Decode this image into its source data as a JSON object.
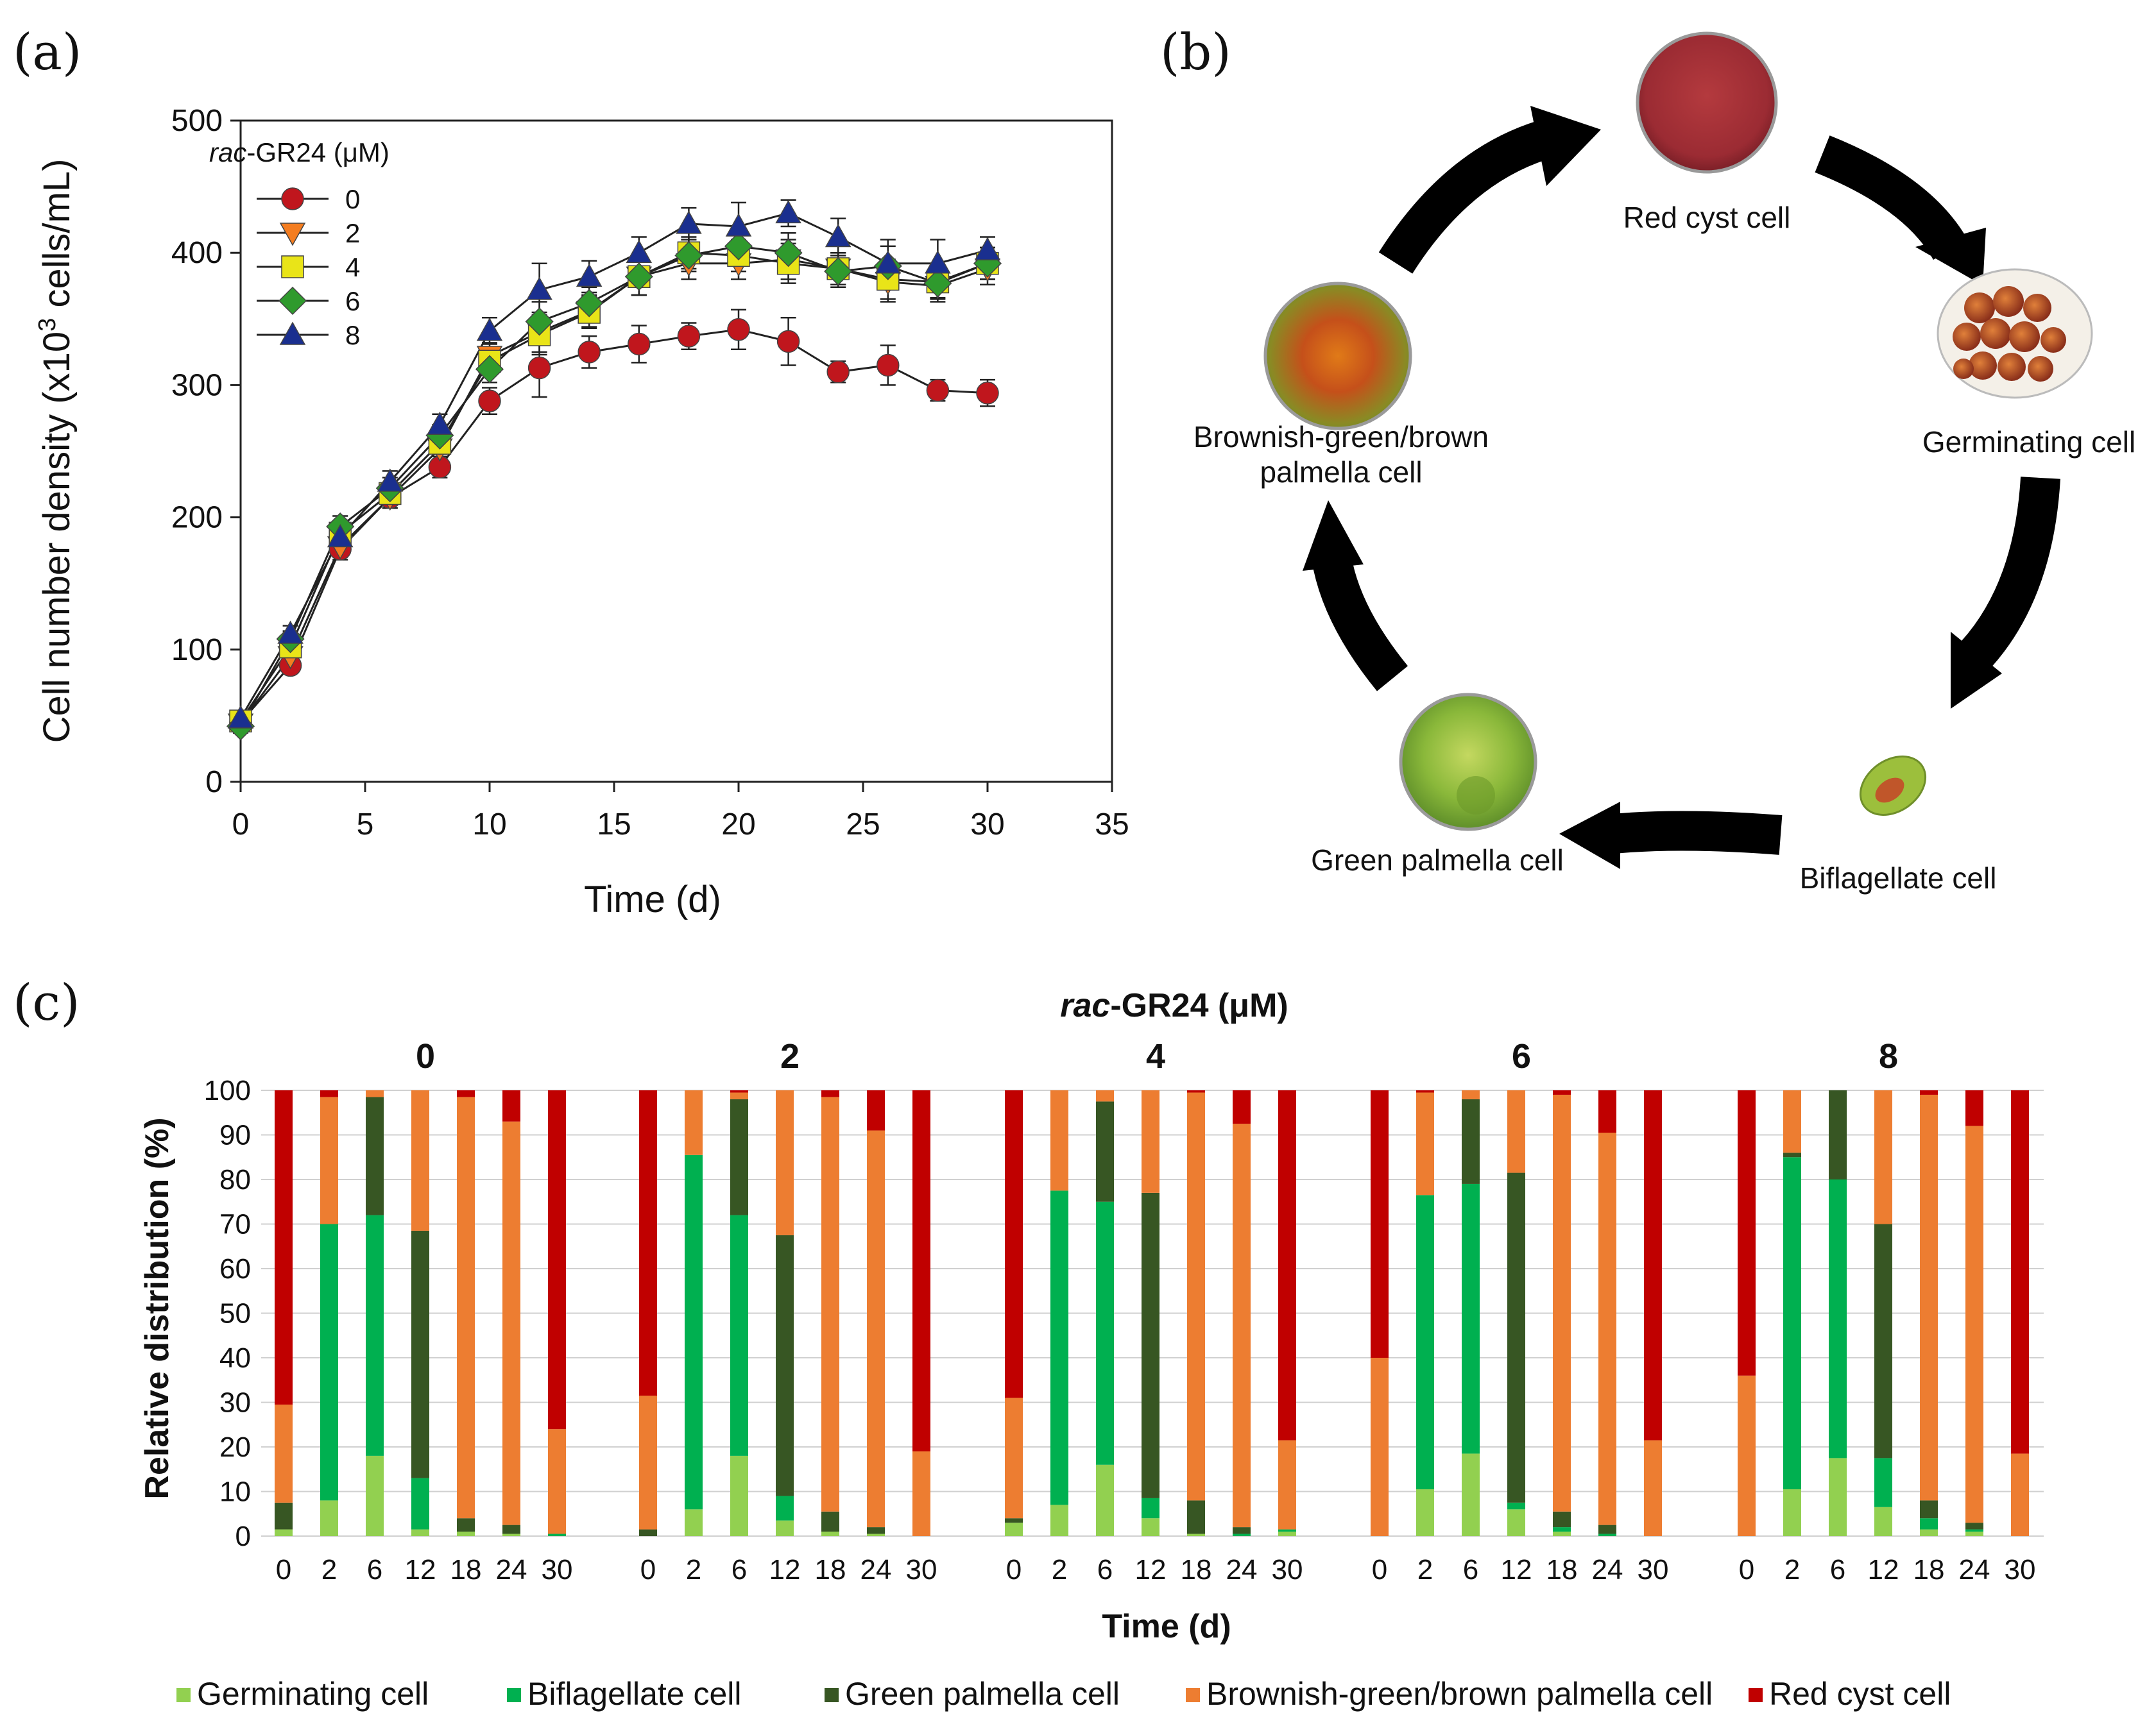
{
  "panels": {
    "a": "(a)",
    "b": "(b)",
    "c": "(c)"
  },
  "chart_data": [
    {
      "type": "line",
      "panel": "a",
      "title": "",
      "xlabel": "Time (d)",
      "ylabel_main": "Cell number density (x10",
      "ylabel_sup": "3",
      "ylabel_tail": " cells/mL)",
      "legend_title_italic": "rac",
      "legend_title_rest": "-GR24 (μM)",
      "xlim": [
        0,
        35
      ],
      "ylim": [
        0,
        500
      ],
      "xticks": [
        0,
        5,
        10,
        15,
        20,
        25,
        30,
        35
      ],
      "yticks": [
        0,
        100,
        200,
        300,
        400,
        500
      ],
      "x": [
        0,
        2,
        4,
        6,
        8,
        10,
        12,
        14,
        16,
        18,
        20,
        22,
        24,
        26,
        28,
        30
      ],
      "series": [
        {
          "name": "0",
          "marker": "circle",
          "color": "#c0161d",
          "values": [
            45,
            88,
            176,
            215,
            238,
            288,
            313,
            325,
            331,
            337,
            342,
            333,
            310,
            315,
            296,
            294
          ],
          "errors": [
            5,
            6,
            8,
            8,
            8,
            10,
            22,
            12,
            14,
            10,
            15,
            18,
            8,
            15,
            8,
            10
          ]
        },
        {
          "name": "2",
          "marker": "triangle-down",
          "color": "#f47d20",
          "values": [
            44,
            95,
            178,
            215,
            252,
            322,
            340,
            356,
            382,
            392,
            392,
            395,
            388,
            378,
            375,
            388
          ],
          "errors": [
            5,
            6,
            8,
            8,
            8,
            10,
            15,
            12,
            14,
            12,
            12,
            15,
            12,
            15,
            12,
            12
          ]
        },
        {
          "name": "4",
          "marker": "square",
          "color": "#e9e418",
          "values": [
            46,
            102,
            188,
            218,
            256,
            318,
            338,
            355,
            382,
            400,
            398,
            392,
            388,
            380,
            378,
            392
          ],
          "errors": [
            5,
            6,
            8,
            8,
            8,
            10,
            15,
            12,
            14,
            12,
            12,
            15,
            12,
            15,
            12,
            12
          ]
        },
        {
          "name": "6",
          "marker": "diamond",
          "color": "#2f9a2d",
          "values": [
            42,
            108,
            193,
            222,
            262,
            312,
            348,
            362,
            382,
            398,
            405,
            400,
            386,
            390,
            377,
            392
          ],
          "errors": [
            5,
            6,
            8,
            8,
            8,
            10,
            15,
            12,
            14,
            12,
            12,
            15,
            12,
            15,
            12,
            12
          ]
        },
        {
          "name": "8",
          "marker": "triangle-up",
          "color": "#1a2f8f",
          "values": [
            48,
            112,
            185,
            227,
            270,
            341,
            372,
            382,
            400,
            422,
            420,
            430,
            412,
            392,
            392,
            402
          ],
          "errors": [
            5,
            6,
            8,
            8,
            8,
            10,
            20,
            12,
            12,
            12,
            18,
            10,
            14,
            18,
            18,
            10
          ]
        }
      ]
    },
    {
      "type": "diagram",
      "panel": "b",
      "stages": [
        "Red cyst cell",
        "Germinating cell",
        "Biflagellate cell",
        "Green palmella cell",
        "Brownish-green/brown palmella cell"
      ],
      "stage_lines": {
        "brownish_line1": "Brownish-green/brown",
        "brownish_line2": "palmella cell"
      }
    },
    {
      "type": "bar",
      "panel": "c",
      "stacked": true,
      "title_italic": "rac",
      "title_rest": "-GR24 (μM)",
      "xlabel": "Time (d)",
      "ylabel": "Relative distribution (%)",
      "ylim": [
        0,
        100
      ],
      "yticks": [
        0,
        10,
        20,
        30,
        40,
        50,
        60,
        70,
        80,
        90,
        100
      ],
      "time_points": [
        "0",
        "2",
        "6",
        "12",
        "18",
        "24",
        "30"
      ],
      "stage_order": [
        "Germinating cell",
        "Biflagellate cell",
        "Green palmella cell",
        "Brownish-green/brown palmella cell",
        "Red cyst cell"
      ],
      "colors": [
        "#92d050",
        "#00b050",
        "#375623",
        "#ed7d31",
        "#c00000"
      ],
      "groups": [
        {
          "name": "0",
          "bars": [
            [
              1.5,
              0,
              6,
              22,
              70.5
            ],
            [
              8,
              62,
              0,
              28.5,
              1.5
            ],
            [
              18,
              54,
              26.5,
              1.5,
              0
            ],
            [
              1.5,
              11.5,
              55.5,
              31.5,
              0
            ],
            [
              1,
              0,
              3,
              94.5,
              1.5
            ],
            [
              0.5,
              0,
              2,
              90.5,
              7
            ],
            [
              0,
              0.5,
              0,
              23.5,
              76
            ]
          ]
        },
        {
          "name": "2",
          "bars": [
            [
              0,
              0,
              1.5,
              30,
              68.5
            ],
            [
              6,
              79.5,
              0,
              14.5,
              0
            ],
            [
              18,
              54,
              26,
              1.5,
              0.5
            ],
            [
              3.5,
              5.5,
              58.5,
              32.5,
              0
            ],
            [
              1,
              0,
              4.5,
              93,
              1.5
            ],
            [
              0.5,
              0,
              1.5,
              89,
              9
            ],
            [
              0,
              0,
              0,
              19,
              81
            ]
          ]
        },
        {
          "name": "4",
          "bars": [
            [
              3,
              0,
              1,
              27,
              69
            ],
            [
              7,
              70.5,
              0,
              22.5,
              0
            ],
            [
              16,
              59,
              22.5,
              2.5,
              0
            ],
            [
              4,
              4.5,
              68.5,
              23,
              0
            ],
            [
              0.5,
              0,
              7.5,
              91.5,
              0.5
            ],
            [
              0,
              0.5,
              1.5,
              90.5,
              7.5
            ],
            [
              1,
              0.5,
              0,
              20,
              78.5
            ]
          ]
        },
        {
          "name": "6",
          "bars": [
            [
              0,
              0,
              0,
              40,
              60
            ],
            [
              10.5,
              66,
              0,
              23,
              0.5
            ],
            [
              18.5,
              60.5,
              19,
              2,
              0
            ],
            [
              6,
              1.5,
              74,
              18.5,
              0
            ],
            [
              1,
              1,
              3.5,
              93.5,
              1
            ],
            [
              0,
              0.5,
              2,
              88,
              9.5
            ],
            [
              0,
              0,
              0,
              21.5,
              78.5
            ]
          ]
        },
        {
          "name": "8",
          "bars": [
            [
              0,
              0,
              0,
              36,
              64
            ],
            [
              10.5,
              74.5,
              1,
              14,
              0
            ],
            [
              17.5,
              62.5,
              20,
              0,
              0
            ],
            [
              6.5,
              11,
              52.5,
              30,
              0
            ],
            [
              1.5,
              2.5,
              4,
              91,
              1
            ],
            [
              1,
              0.5,
              1.5,
              89,
              8
            ],
            [
              0,
              0,
              0,
              18.5,
              81.5
            ]
          ]
        }
      ]
    }
  ],
  "legend_c": [
    {
      "label": "Germinating cell",
      "color": "#92d050"
    },
    {
      "label": "Biflagellate cell",
      "color": "#00b050"
    },
    {
      "label": "Green palmella cell",
      "color": "#375623"
    },
    {
      "label": "Brownish-green/brown palmella cell",
      "color": "#ed7d31"
    },
    {
      "label": "Red cyst cell",
      "color": "#c00000"
    }
  ]
}
